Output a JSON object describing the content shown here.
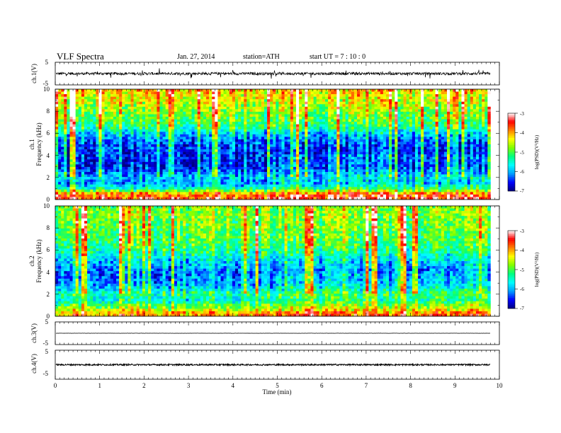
{
  "header": {
    "title": "VLF  Spectra",
    "date": "Jan.  27,  2014",
    "station": "station=ATH",
    "start_ut": "start  UT  =    7  : 10 : 0"
  },
  "x_axis": {
    "label": "Time  (min)",
    "range": [
      0,
      10
    ],
    "ticks": [
      "0",
      "1",
      "2",
      "3",
      "4",
      "5",
      "6",
      "7",
      "8",
      "9",
      "10"
    ]
  },
  "colorbar": {
    "label": "log(PSD)(V²/Hz)",
    "ticks": [
      "-3",
      "-4",
      "-5",
      "-6",
      "-7"
    ],
    "range": [
      -7,
      -3
    ],
    "colors": [
      "#000080",
      "#0000ff",
      "#00a0ff",
      "#00ffff",
      "#00ff80",
      "#80ff00",
      "#ffff00",
      "#ff8000",
      "#ff0000",
      "#ffffff"
    ]
  },
  "chart_data": [
    {
      "type": "line",
      "panel": "waveform-ch1",
      "ylabel": "ch.1(V)",
      "y_ticks": [
        "5",
        "-5"
      ],
      "ylim": [
        -5,
        5
      ],
      "mean": 0,
      "noise_amplitude": 0.6,
      "data_end_min": 9.8
    },
    {
      "type": "heatmap",
      "panel": "spectrogram-ch1",
      "ylabel": "ch.1\nFrequency  (kHz)",
      "ylabel_top": "ch.1",
      "ylabel_bottom": "Frequency  (kHz)",
      "y_ticks": [
        "0",
        "2",
        "4",
        "6",
        "8",
        "10"
      ],
      "ylim": [
        0,
        10
      ],
      "xlim": [
        0,
        9.8
      ],
      "regime_change_min": 4.85,
      "profile": [
        {
          "f": 0.2,
          "psd": -3.6
        },
        {
          "f": 0.6,
          "psd": -4.2
        },
        {
          "f": 1.0,
          "psd": -5.5
        },
        {
          "f": 1.5,
          "psd": -6.1
        },
        {
          "f": 2.0,
          "psd": -5.9
        },
        {
          "f": 2.5,
          "psd": -6.3
        },
        {
          "f": 3.0,
          "psd": -6.6
        },
        {
          "f": 4.0,
          "psd": -6.5
        },
        {
          "f": 5.0,
          "psd": -6.4
        },
        {
          "f": 5.8,
          "psd": -6.0
        },
        {
          "f": 6.5,
          "psd": -5.3
        },
        {
          "f": 7.5,
          "psd": -4.9
        },
        {
          "f": 8.5,
          "psd": -4.6
        },
        {
          "f": 9.5,
          "psd": -4.3
        },
        {
          "f": 10.0,
          "psd": -4.1
        }
      ]
    },
    {
      "type": "heatmap",
      "panel": "spectrogram-ch2",
      "ylabel_top": "ch.2",
      "ylabel_bottom": "Frequency  (kHz)",
      "y_ticks": [
        "0",
        "2",
        "4",
        "6",
        "8",
        "10"
      ],
      "ylim": [
        0,
        10
      ],
      "xlim": [
        0,
        9.8
      ],
      "regime_change_min": 4.85,
      "profile": [
        {
          "f": 0.2,
          "psd": -4.0
        },
        {
          "f": 0.6,
          "psd": -4.6
        },
        {
          "f": 1.0,
          "psd": -5.0
        },
        {
          "f": 1.5,
          "psd": -5.6
        },
        {
          "f": 2.0,
          "psd": -5.3
        },
        {
          "f": 2.5,
          "psd": -5.8
        },
        {
          "f": 3.0,
          "psd": -6.1
        },
        {
          "f": 4.0,
          "psd": -6.2
        },
        {
          "f": 5.0,
          "psd": -5.8
        },
        {
          "f": 6.0,
          "psd": -5.3
        },
        {
          "f": 7.0,
          "psd": -5.0
        },
        {
          "f": 8.0,
          "psd": -4.9
        },
        {
          "f": 9.0,
          "psd": -4.8
        },
        {
          "f": 10.0,
          "psd": -4.8
        }
      ]
    },
    {
      "type": "line",
      "panel": "waveform-ch3",
      "ylabel": "ch.3(V)",
      "y_ticks": [
        "5",
        "-5"
      ],
      "ylim": [
        -5,
        5
      ],
      "mean": 0,
      "noise_amplitude": 0.05,
      "data_end_min": 9.8
    },
    {
      "type": "line",
      "panel": "waveform-ch4",
      "ylabel": "ch.4(V)",
      "y_ticks": [
        "5",
        "-5"
      ],
      "ylim": [
        -5,
        5
      ],
      "mean": 0,
      "noise_amplitude": 0.25,
      "data_end_min": 9.8
    }
  ]
}
